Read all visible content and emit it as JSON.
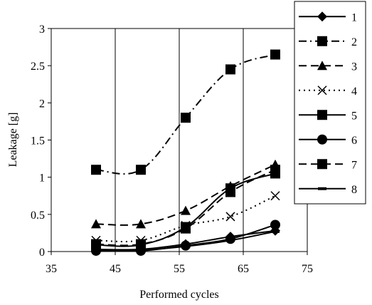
{
  "chart_data": {
    "type": "line",
    "title": "",
    "xlabel": "Performed cycles",
    "ylabel": "Leakage [g]",
    "xlim": [
      35,
      75
    ],
    "ylim": [
      0,
      3
    ],
    "x_ticks": [
      35,
      45,
      55,
      65,
      75
    ],
    "y_ticks": [
      0,
      0.5,
      1,
      1.5,
      2,
      2.5,
      3
    ],
    "x_tick_labels": [
      "35",
      "45",
      "55",
      "65",
      "75"
    ],
    "y_tick_labels": [
      "0",
      "0.5",
      "1",
      "1.5",
      "2",
      "2.5",
      "3"
    ],
    "grid": "vertical",
    "legend_placement": "right",
    "x": [
      42,
      49,
      56,
      63,
      70
    ],
    "series": [
      {
        "name": "1",
        "marker": "diamond",
        "dash": "solid",
        "values": [
          0.03,
          0.03,
          0.1,
          0.2,
          0.28
        ]
      },
      {
        "name": "2",
        "marker": "square",
        "dash": "dashdot",
        "values": [
          1.1,
          1.1,
          1.8,
          2.45,
          2.65
        ]
      },
      {
        "name": "3",
        "marker": "triangle",
        "dash": "dash",
        "values": [
          0.37,
          0.37,
          0.55,
          0.88,
          1.17
        ]
      },
      {
        "name": "4",
        "marker": "x",
        "dash": "dot",
        "values": [
          0.15,
          0.15,
          0.35,
          0.47,
          0.75
        ]
      },
      {
        "name": "5",
        "marker": "square",
        "dash": "solid",
        "values": [
          0.09,
          0.09,
          0.33,
          0.85,
          1.05
        ]
      },
      {
        "name": "6",
        "marker": "circle",
        "dash": "solid",
        "values": [
          0.01,
          0.01,
          0.08,
          0.17,
          0.36
        ]
      },
      {
        "name": "7",
        "marker": "square",
        "dash": "dash",
        "values": [
          0.1,
          0.1,
          0.31,
          0.8,
          1.1
        ]
      },
      {
        "name": "8",
        "marker": "dash",
        "dash": "solid",
        "values": [
          0.02,
          0.02,
          0.07,
          0.15,
          0.27
        ]
      }
    ]
  }
}
